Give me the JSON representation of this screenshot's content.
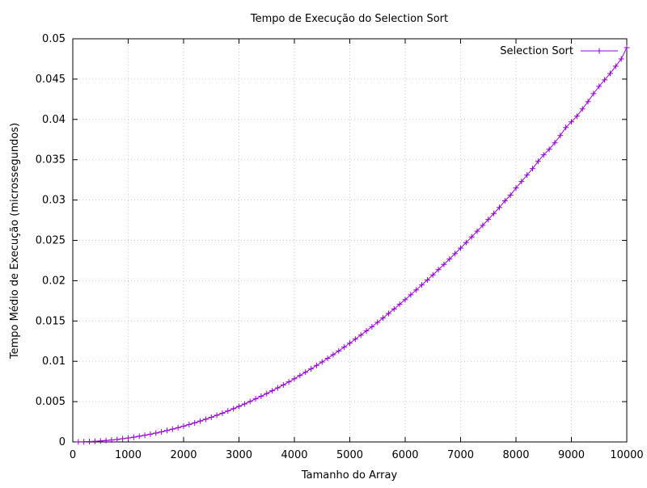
{
  "chart_data": {
    "type": "line",
    "title": "Tempo de Execução do Selection Sort",
    "xlabel": "Tamanho do Array",
    "ylabel": "Tempo Médio de Execução (microssegundos)",
    "xlim": [
      0,
      10000
    ],
    "ylim": [
      0,
      0.05
    ],
    "x_ticks": [
      "0",
      "1000",
      "2000",
      "3000",
      "4000",
      "5000",
      "6000",
      "7000",
      "8000",
      "9000",
      "10000"
    ],
    "y_ticks": [
      "0",
      "0.005",
      "0.01",
      "0.015",
      "0.02",
      "0.025",
      "0.03",
      "0.035",
      "0.04",
      "0.045",
      "0.05"
    ],
    "grid": true,
    "legend_position": "top-right",
    "series": [
      {
        "name": "Selection Sort",
        "color": "#9400d3",
        "marker": "plus",
        "x": [
          100,
          200,
          300,
          400,
          500,
          600,
          700,
          800,
          900,
          1000,
          1100,
          1200,
          1300,
          1400,
          1500,
          1600,
          1700,
          1800,
          1900,
          2000,
          2100,
          2200,
          2300,
          2400,
          2500,
          2600,
          2700,
          2800,
          2900,
          3000,
          3100,
          3200,
          3300,
          3400,
          3500,
          3600,
          3700,
          3800,
          3900,
          4000,
          4100,
          4200,
          4300,
          4400,
          4500,
          4600,
          4700,
          4800,
          4900,
          5000,
          5100,
          5200,
          5300,
          5400,
          5500,
          5600,
          5700,
          5800,
          5900,
          6000,
          6100,
          6200,
          6300,
          6400,
          6500,
          6600,
          6700,
          6800,
          6900,
          7000,
          7100,
          7200,
          7300,
          7400,
          7500,
          7600,
          7700,
          7800,
          7900,
          8000,
          8100,
          8200,
          8300,
          8400,
          8500,
          8600,
          8700,
          8800,
          8900,
          9000,
          9100,
          9200,
          9300,
          9400,
          9500,
          9600,
          9700,
          9800,
          9900,
          10000
        ],
        "y": [
          1e-05,
          2e-05,
          5e-05,
          8e-05,
          0.00012,
          0.00018,
          0.00024,
          0.00031,
          0.0004,
          0.00049,
          0.00059,
          0.00071,
          0.00083,
          0.00096,
          0.0011,
          0.00125,
          0.00142,
          0.00159,
          0.00177,
          0.00196,
          0.00216,
          0.00237,
          0.00259,
          0.00282,
          0.00306,
          0.00331,
          0.00357,
          0.00384,
          0.00412,
          0.00441,
          0.00471,
          0.00502,
          0.00534,
          0.00567,
          0.006,
          0.00635,
          0.00671,
          0.00707,
          0.00745,
          0.00784,
          0.00824,
          0.00864,
          0.00906,
          0.00949,
          0.00992,
          0.01037,
          0.01082,
          0.01129,
          0.01176,
          0.01225,
          0.01275,
          0.01325,
          0.01377,
          0.01429,
          0.01483,
          0.01537,
          0.01593,
          0.01649,
          0.01707,
          0.01765,
          0.01825,
          0.01885,
          0.01947,
          0.02009,
          0.02072,
          0.02137,
          0.02202,
          0.02268,
          0.02336,
          0.02404,
          0.02473,
          0.02543,
          0.02614,
          0.02686,
          0.02759,
          0.02833,
          0.02908,
          0.0299,
          0.0306,
          0.0315,
          0.0323,
          0.0331,
          0.0339,
          0.0348,
          0.0356,
          0.0363,
          0.0371,
          0.038,
          0.039,
          0.0397,
          0.0404,
          0.0413,
          0.0422,
          0.0432,
          0.0441,
          0.0449,
          0.0457,
          0.0466,
          0.0475,
          0.0489
        ]
      }
    ]
  }
}
